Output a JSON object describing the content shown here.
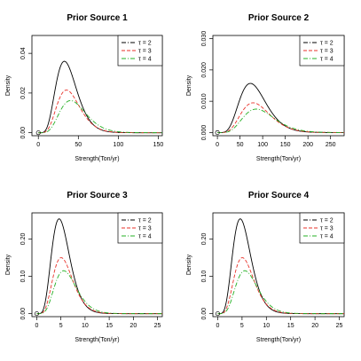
{
  "chart_data": [
    {
      "type": "line",
      "title": "Prior Source 1",
      "xlabel": "Strength(Ton/yr)",
      "ylabel": "Density",
      "xlim": [
        -8,
        155
      ],
      "ylim": [
        -0.0015,
        0.049
      ],
      "xticks": [
        0,
        50,
        100,
        150
      ],
      "yticks": [
        0.0,
        0.02,
        0.04
      ],
      "ytick_labels": [
        "0.00",
        "0.02",
        "0.04"
      ],
      "legend": {
        "position": "top-right",
        "entries": [
          "τ = 2",
          "τ = 3",
          "τ = 4"
        ]
      },
      "marker": {
        "x": 0,
        "y": 0
      },
      "series": [
        {
          "name": "τ = 2",
          "dist": "gamma",
          "mean": 38,
          "peak": 0.036,
          "x_end": 155
        },
        {
          "name": "τ = 3",
          "dist": "gamma",
          "mean": 41,
          "peak": 0.0215,
          "x_end": 155
        },
        {
          "name": "τ = 4",
          "dist": "gamma",
          "mean": 47,
          "peak": 0.0162,
          "x_end": 155
        }
      ]
    },
    {
      "type": "line",
      "title": "Prior Source 2",
      "xlabel": "Strength(Ton/yr)",
      "ylabel": "Density",
      "xlim": [
        -10,
        280
      ],
      "ylim": [
        -0.001,
        0.031
      ],
      "xticks": [
        0,
        50,
        100,
        150,
        200,
        250
      ],
      "yticks": [
        0.0,
        0.01,
        0.02,
        0.03
      ],
      "ytick_labels": [
        "0.000",
        "0.010",
        "0.020",
        "0.030"
      ],
      "legend": {
        "position": "top-right",
        "entries": [
          "τ = 2",
          "τ = 3",
          "τ = 4"
        ]
      },
      "marker": {
        "x": 0,
        "y": 0
      },
      "series": [
        {
          "name": "τ = 2",
          "dist": "gamma",
          "mean": 85,
          "peak": 0.0157,
          "x_end": 280
        },
        {
          "name": "τ = 3",
          "dist": "gamma",
          "mean": 92,
          "peak": 0.0095,
          "x_end": 280
        },
        {
          "name": "τ = 4",
          "dist": "gamma",
          "mean": 100,
          "peak": 0.0075,
          "x_end": 280
        }
      ]
    },
    {
      "type": "line",
      "title": "Prior Source 3",
      "xlabel": "Strength(Ton/yr)",
      "ylabel": "Density",
      "xlim": [
        -1,
        26
      ],
      "ylim": [
        -0.008,
        0.27
      ],
      "xticks": [
        0,
        5,
        10,
        15,
        20,
        25
      ],
      "yticks": [
        0.0,
        0.1,
        0.2
      ],
      "ytick_labels": [
        "0.00",
        "0.10",
        "0.20"
      ],
      "legend": {
        "position": "top-right",
        "entries": [
          "τ = 2",
          "τ = 3",
          "τ = 4"
        ]
      },
      "marker": {
        "x": 0,
        "y": 0
      },
      "series": [
        {
          "name": "τ = 2",
          "dist": "gamma",
          "mean": 5.4,
          "peak": 0.254,
          "x_end": 26
        },
        {
          "name": "τ = 3",
          "dist": "gamma",
          "mean": 5.9,
          "peak": 0.15,
          "x_end": 26
        },
        {
          "name": "τ = 4",
          "dist": "gamma",
          "mean": 6.5,
          "peak": 0.115,
          "x_end": 26
        }
      ]
    },
    {
      "type": "line",
      "title": "Prior Source 4",
      "xlabel": "Strength(Ton/yr)",
      "ylabel": "Density",
      "xlim": [
        -1,
        26
      ],
      "ylim": [
        -0.008,
        0.27
      ],
      "xticks": [
        0,
        5,
        10,
        15,
        20,
        25
      ],
      "yticks": [
        0.0,
        0.1,
        0.2
      ],
      "ytick_labels": [
        "0.00",
        "0.10",
        "0.20"
      ],
      "legend": {
        "position": "top-right",
        "entries": [
          "τ = 2",
          "τ = 3",
          "τ = 4"
        ]
      },
      "marker": {
        "x": 0,
        "y": 0
      },
      "series": [
        {
          "name": "τ = 2",
          "dist": "gamma",
          "mean": 5.4,
          "peak": 0.254,
          "x_end": 26
        },
        {
          "name": "τ = 3",
          "dist": "gamma",
          "mean": 5.9,
          "peak": 0.15,
          "x_end": 26
        },
        {
          "name": "τ = 4",
          "dist": "gamma",
          "mean": 6.5,
          "peak": 0.115,
          "x_end": 26
        }
      ]
    }
  ],
  "series_styles": [
    {
      "color": "#000000",
      "dash": "none",
      "legend_dash": "5,2,1,2"
    },
    {
      "color": "#e8322a",
      "dash": "4,2",
      "legend_dash": "4,2"
    },
    {
      "color": "#25b025",
      "dash": "5,2,1,2",
      "legend_dash": "5,2,1,2"
    }
  ]
}
